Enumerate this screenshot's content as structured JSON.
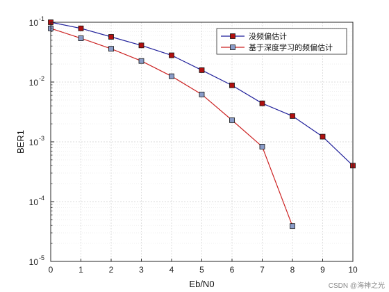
{
  "chart_data": {
    "type": "line",
    "xlabel": "Eb/N0",
    "ylabel": "BER1",
    "xlim": [
      0,
      10
    ],
    "ylim": [
      1e-05,
      0.1
    ],
    "yscale": "log",
    "grid": true,
    "legend_position": "top-right",
    "x_ticks": [
      "0",
      "1",
      "2",
      "3",
      "4",
      "5",
      "6",
      "7",
      "8",
      "9",
      "10"
    ],
    "y_ticks": [
      {
        "base": "10",
        "exp": "-5",
        "value": 1e-05
      },
      {
        "base": "10",
        "exp": "-4",
        "value": 0.0001
      },
      {
        "base": "10",
        "exp": "-3",
        "value": 0.001
      },
      {
        "base": "10",
        "exp": "-2",
        "value": 0.01
      },
      {
        "base": "10",
        "exp": "-1",
        "value": 0.1
      }
    ],
    "series": [
      {
        "name": "没频偏估计",
        "line_color": "#1f1f9a",
        "marker_color": "#b01010",
        "x": [
          0,
          1,
          2,
          3,
          4,
          5,
          6,
          7,
          8,
          9,
          10
        ],
        "y": [
          0.1,
          0.079,
          0.057,
          0.041,
          0.028,
          0.0158,
          0.0088,
          0.0044,
          0.0027,
          0.00122,
          0.0004
        ]
      },
      {
        "name": "基于深度学习的频偏估计",
        "line_color": "#cc2222",
        "marker_color": "#8a9cc8",
        "x": [
          0,
          1,
          2,
          3,
          4,
          5,
          6,
          7,
          8
        ],
        "y": [
          0.079,
          0.054,
          0.036,
          0.0225,
          0.0125,
          0.0062,
          0.0023,
          0.00083,
          3.9e-05
        ]
      }
    ]
  },
  "watermark": "CSDN @海神之光"
}
